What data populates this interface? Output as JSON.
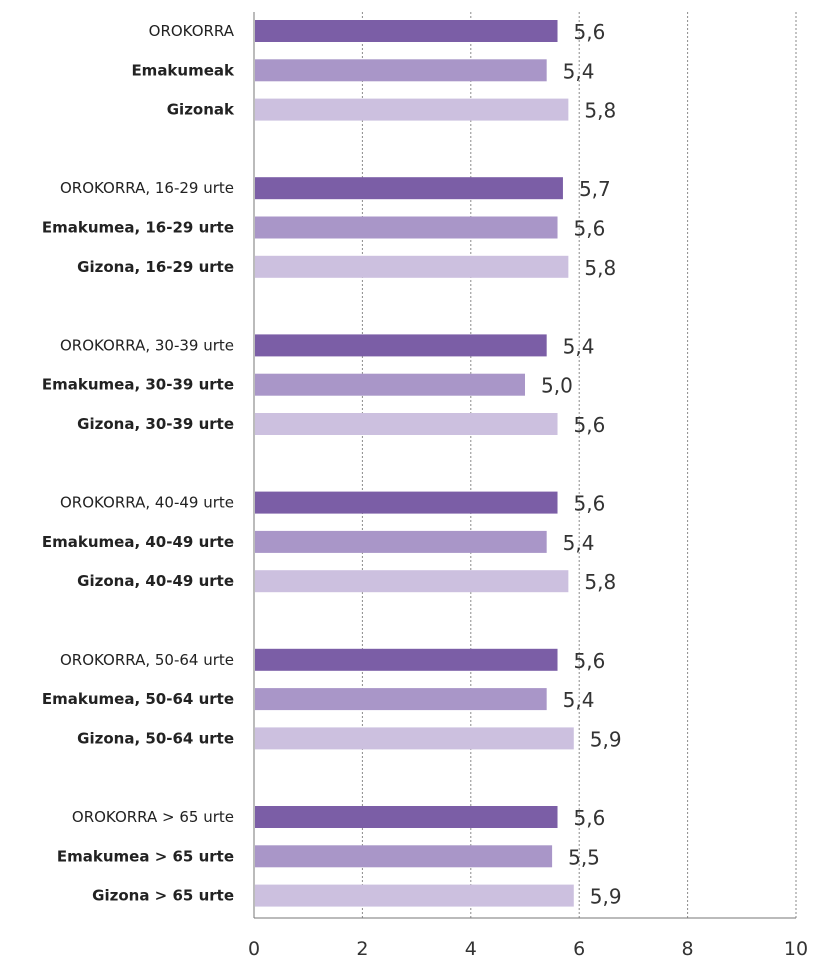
{
  "chart_data": {
    "type": "bar",
    "orientation": "horizontal",
    "categories": [
      "OROKORRA",
      "Emakumeak",
      "Gizonak",
      "OROKORRA, 16-29 urte",
      "Emakumea, 16-29 urte",
      "Gizona, 16-29 urte",
      "OROKORRA, 30-39 urte",
      "Emakumea, 30-39 urte",
      "Gizona, 30-39 urte",
      "OROKORRA, 40-49 urte",
      "Emakumea, 40-49 urte",
      "Gizona, 40-49 urte",
      "OROKORRA, 50-64 urte",
      "Emakumea, 50-64 urte",
      "Gizona, 50-64 urte",
      "OROKORRA > 65 urte",
      "Emakumea > 65 urte",
      "Gizona > 65 urte"
    ],
    "values": [
      5.6,
      5.4,
      5.8,
      5.7,
      5.6,
      5.8,
      5.4,
      5.0,
      5.6,
      5.6,
      5.4,
      5.8,
      5.6,
      5.4,
      5.9,
      5.6,
      5.5,
      5.9
    ],
    "value_labels": [
      "5,6",
      "5,4",
      "5,8",
      "5,7",
      "5,6",
      "5,8",
      "5,4",
      "5,0",
      "5,6",
      "5,6",
      "5,4",
      "5,8",
      "5,6",
      "5,4",
      "5,9",
      "5,6",
      "5,5",
      "5,9"
    ],
    "xlim": [
      0,
      10
    ],
    "xticks": [
      0,
      2,
      4,
      6,
      8,
      10
    ],
    "xtick_labels": [
      "0",
      "2",
      "4",
      "6",
      "8",
      "10"
    ],
    "grid": "vertical dotted",
    "colors": [
      "#7b5ea6",
      "#a996c8",
      "#ccc0df"
    ]
  }
}
